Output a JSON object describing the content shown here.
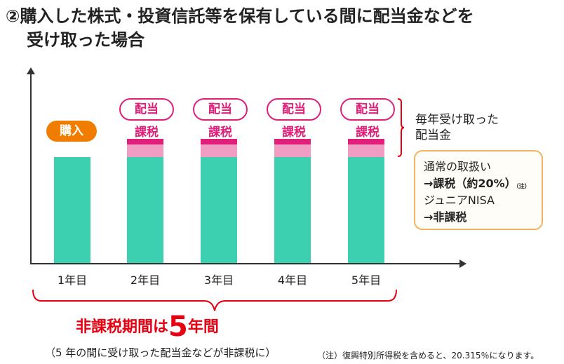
{
  "title": {
    "line1": "②購入した株式・投資信託等を保有している間に配当金などを",
    "line2": "受け取った場合"
  },
  "chart": {
    "purchase_label": "購入",
    "dividend_label": "配当",
    "taxed_label": "課税",
    "x_labels": [
      "1年目",
      "2年目",
      "3年目",
      "4年目",
      "5年目"
    ]
  },
  "side": {
    "annual_line1": "毎年受け取った",
    "annual_line2": "配当金"
  },
  "infobox": {
    "normal": "通常の取扱い",
    "normal_tax": "→課税（約20%）",
    "note_mark": "（注）",
    "nisa": "ジュニアNISA",
    "nisa_tax": "→非課税"
  },
  "period": {
    "prefix": "非課税期間は",
    "number": "5",
    "suffix": "年間"
  },
  "notes": {
    "sub": "（5 年の間に受け取った配当金などが非課税に）",
    "footnote": "（注）復興特別所得税を含めると、20.315％になります。"
  },
  "colors": {
    "base": "#3ccfb0",
    "tax": "#f19cc3",
    "tax_top": "#e01f7a",
    "purchase": "#f07d00",
    "emphasis": "#e60012"
  }
}
